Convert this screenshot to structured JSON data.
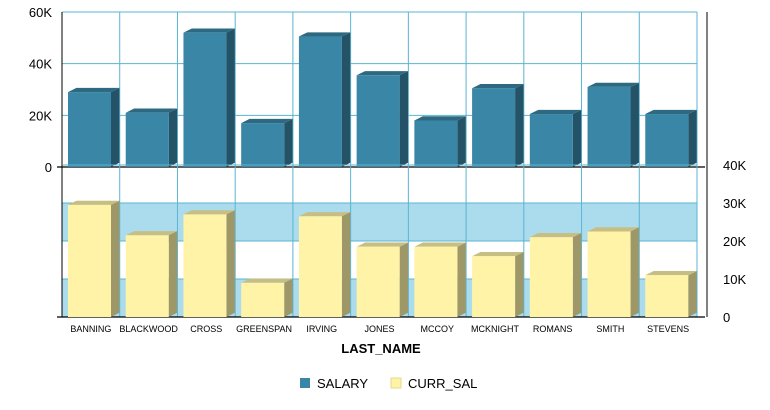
{
  "chart_data": {
    "type": "bar",
    "style": "3d-stacked-panels",
    "categories": [
      "BANNING",
      "BLACKWOOD",
      "CROSS",
      "GREENSPAN",
      "IRVING",
      "JONES",
      "MCCOY",
      "MCKNIGHT",
      "ROMANS",
      "SMITH",
      "STEVENS"
    ],
    "series": [
      {
        "name": "SALARY",
        "color": "#3a86a6",
        "values": [
          29000,
          21000,
          52000,
          17000,
          50500,
          35500,
          18000,
          30500,
          20500,
          31000,
          20500
        ]
      },
      {
        "name": "CURR_SAL",
        "color": "#fff3a8",
        "values": [
          29500,
          21500,
          27000,
          9000,
          26500,
          18500,
          18500,
          16000,
          21000,
          22500,
          11000
        ]
      }
    ],
    "panels": [
      {
        "series": "SALARY",
        "ylim": [
          0,
          60000
        ],
        "yticks": [
          0,
          20000,
          40000,
          60000
        ],
        "ytick_labels": [
          "0",
          "20K",
          "40K",
          "60K"
        ],
        "axis_side": "left",
        "band_color": "#ffffff"
      },
      {
        "series": "CURR_SAL",
        "ylim": [
          0,
          40000
        ],
        "yticks": [
          0,
          10000,
          20000,
          30000,
          40000
        ],
        "ytick_labels": [
          "0",
          "10K",
          "20K",
          "30K",
          "40K"
        ],
        "axis_side": "right",
        "band_color": "#aadcee"
      }
    ],
    "xlabel": "LAST_NAME",
    "grid": true,
    "legend_position": "bottom"
  }
}
